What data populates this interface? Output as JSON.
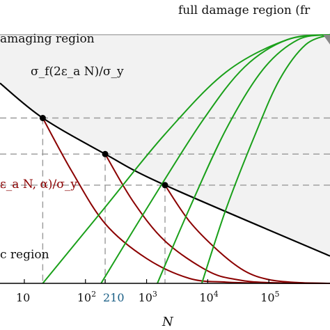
{
  "chart_data": {
    "type": "line",
    "xscale": "log",
    "xlabel": "N",
    "ylabel": "",
    "xlim": [
      4,
      1000000
    ],
    "ylim": [
      0,
      1.05
    ],
    "grid": false,
    "x_ticks": [
      {
        "value": 10,
        "base": "10",
        "exp": ""
      },
      {
        "value": 100,
        "base": "10",
        "exp": "2"
      },
      {
        "value": 1000,
        "base": "10",
        "exp": "3"
      },
      {
        "value": 10000,
        "base": "10",
        "exp": "4"
      },
      {
        "value": 100000,
        "base": "10",
        "exp": "5"
      }
    ],
    "highlight_tick": {
      "value": 210,
      "label": "210",
      "color": "#1a5f86"
    },
    "regions": {
      "full_damage": "full damage region (fr",
      "damaging": "amaging region",
      "elastic": "c region"
    },
    "curve_labels": {
      "black": "σ_f(2ε_a N)/σ_y",
      "red": "ε_a N, α)/σ_y"
    },
    "colors": {
      "black": "#000000",
      "red": "#8b0000",
      "green": "#1aa01a",
      "shade": "#f2f2f2",
      "dash": "#999999",
      "tick_highlight": "#1a5f86"
    },
    "damage_limit": 1.0,
    "series": [
      {
        "role": "black-limit",
        "color": "#000000",
        "x": [
          4,
          20,
          210,
          2000,
          1000000
        ],
        "y": [
          0.805,
          0.665,
          0.52,
          0.395,
          0.11
        ]
      },
      {
        "role": "red-1",
        "color": "#8b0000",
        "x": [
          20,
          60,
          210,
          1000,
          5000,
          20000,
          100000,
          1000000
        ],
        "y": [
          0.665,
          0.45,
          0.24,
          0.1,
          0.02,
          0.005,
          0.001,
          0.0
        ]
      },
      {
        "role": "red-2",
        "color": "#8b0000",
        "x": [
          210,
          600,
          2000,
          10000,
          30000,
          100000,
          1000000
        ],
        "y": [
          0.52,
          0.33,
          0.17,
          0.05,
          0.015,
          0.003,
          0.0
        ]
      },
      {
        "role": "red-3",
        "color": "#8b0000",
        "x": [
          2000,
          5000,
          15000,
          40000,
          100000,
          300000,
          1000000
        ],
        "y": [
          0.395,
          0.25,
          0.13,
          0.05,
          0.015,
          0.003,
          0.0
        ]
      },
      {
        "role": "green-1",
        "color": "#1aa01a",
        "x": [
          20,
          200,
          2000,
          20000,
          200000,
          1000000
        ],
        "y": [
          0.0,
          0.3,
          0.6,
          0.85,
          0.98,
          1.0
        ]
      },
      {
        "role": "green-2",
        "color": "#1aa01a",
        "x": [
          180,
          1000,
          8000,
          40000,
          200000,
          1000000
        ],
        "y": [
          0.0,
          0.3,
          0.65,
          0.87,
          0.98,
          1.0
        ]
      },
      {
        "role": "green-3",
        "color": "#1aa01a",
        "x": [
          1500,
          5000,
          20000,
          80000,
          300000,
          1000000
        ],
        "y": [
          0.0,
          0.3,
          0.62,
          0.86,
          0.98,
          1.0
        ]
      },
      {
        "role": "green-4",
        "color": "#1aa01a",
        "x": [
          8000,
          20000,
          60000,
          150000,
          400000,
          1000000
        ],
        "y": [
          0.0,
          0.3,
          0.6,
          0.82,
          0.96,
          1.0
        ]
      }
    ],
    "markers": [
      {
        "x": 20,
        "y": 0.665
      },
      {
        "x": 210,
        "y": 0.52
      },
      {
        "x": 2000,
        "y": 0.395
      }
    ]
  }
}
